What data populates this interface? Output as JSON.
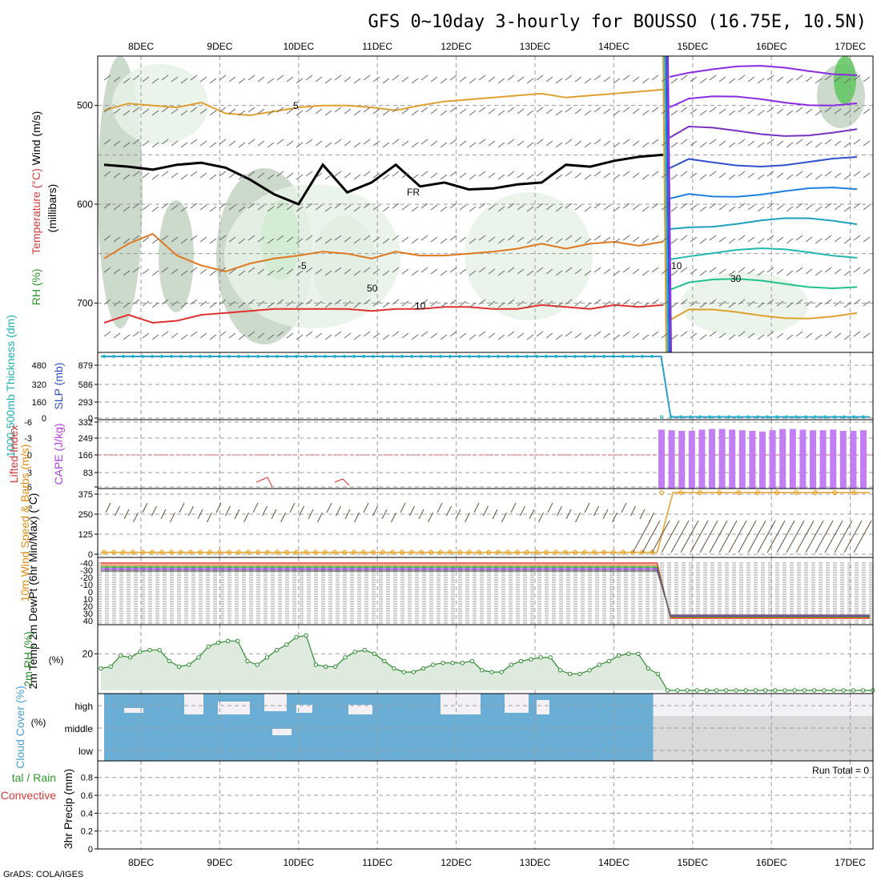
{
  "title": "GFS 0~10day 3-hourly for BOUSSO (16.75E, 10.5N)",
  "credit": "GrADS: COLA/IGES",
  "colors": {
    "rh_light": "#e6f2e6",
    "rh_mid": "#c3d3c3",
    "rh_dark": "#5ec75e",
    "cloud": "#6aaed6",
    "cloud_clear": "#f3f0f6",
    "cape": "#c27ef2",
    "thick": "#2a9fd0",
    "wind_speed": "#e8a020",
    "rh2m": "#2e8b2e",
    "barb": "#666666",
    "freeze": "#000000"
  },
  "chart_data": [
    {
      "id": "upper_air",
      "type": "contour",
      "x": [
        "8DEC",
        "9DEC",
        "10DEC",
        "11DEC",
        "12DEC",
        "13DEC",
        "14DEC",
        "15DEC",
        "16DEC",
        "17DEC"
      ],
      "ylabel_parts": [
        "RH (%)",
        "Temperature (°C)",
        "Wind (m/s)",
        "(millibars)"
      ],
      "y_ticks": [
        500,
        600,
        700
      ],
      "ylim": [
        450,
        750
      ],
      "temp_labels": [
        "5",
        "FR",
        "-5",
        "10",
        "10",
        "30",
        "50"
      ],
      "freezing_level_mb": [
        560,
        562,
        565,
        560,
        558,
        563,
        575,
        590,
        600,
        560,
        588,
        578,
        560,
        582,
        578,
        585,
        584,
        580,
        578,
        560,
        562,
        556,
        552,
        550
      ],
      "iso5_mb": [
        505,
        498,
        500,
        502,
        497,
        508,
        510,
        506,
        502,
        500,
        500,
        502,
        505,
        500,
        496,
        494,
        492,
        490,
        488,
        492,
        490,
        488,
        486,
        484
      ],
      "iso_minus5_mb": [
        655,
        640,
        630,
        652,
        662,
        668,
        660,
        655,
        652,
        648,
        650,
        655,
        648,
        652,
        652,
        650,
        648,
        645,
        640,
        645,
        640,
        638,
        642,
        638
      ],
      "iso10_mb": [
        720,
        712,
        720,
        718,
        712,
        710,
        708,
        706,
        706,
        706,
        706,
        708,
        706,
        706,
        704,
        704,
        706,
        706,
        702,
        704,
        706,
        702,
        704,
        702
      ],
      "rh_shaded_pct": [
        30,
        50,
        70
      ]
    },
    {
      "id": "thickness_slp",
      "type": "line",
      "ylabel": "1000-500mb Thickness (dm)",
      "ylabel2": "SLP (mb)",
      "y_ticks": [
        "480",
        "320",
        "160",
        "0"
      ],
      "y2_ticks": [
        "879",
        "586",
        "293",
        "0"
      ],
      "series": [
        {
          "name": "Thickness",
          "values_norm_before": 0.94,
          "values_norm_after": 0.04,
          "break_day": 14.6
        }
      ]
    },
    {
      "id": "stability",
      "type": "bar",
      "ylabel": "Lifted Index",
      "ylabel2": "CAPE (J/kg)",
      "y_ticks": [
        "-6",
        "-3",
        "0",
        "3",
        "6"
      ],
      "y2_ticks": [
        "332",
        "249",
        "166",
        "83"
      ],
      "cape_bars": [
        0.93,
        0.92,
        0.91,
        0.91,
        0.93,
        0.94,
        0.94,
        0.93,
        0.92,
        0.91,
        0.9,
        0.92,
        0.94,
        0.94,
        0.93,
        0.92,
        0.92,
        0.93,
        0.91,
        0.91,
        0.92
      ]
    },
    {
      "id": "surface_wind",
      "type": "line",
      "ylabel": "10m Wind Speed & Barbs (m/s)",
      "y_ticks": [
        "375",
        "250",
        "125",
        "0"
      ],
      "ylim": [
        0,
        400
      ],
      "speed_before": 12,
      "speed_after": 385
    },
    {
      "id": "temp_2m",
      "type": "line",
      "ylabel": "2m Temp 2m DewPt (6hr Min/Max) (°C)",
      "levels": [
        "-40",
        "-30",
        "-20",
        "-10",
        "0",
        "10",
        "20",
        "30",
        "40"
      ]
    },
    {
      "id": "rh_2m",
      "type": "area",
      "ylabel": "2m RH (%)",
      "y_ticks": [
        "20"
      ],
      "ylim": [
        0,
        35
      ],
      "values": [
        12,
        13,
        19,
        18,
        21,
        22,
        22,
        16,
        13,
        14,
        18,
        24,
        26,
        27,
        27,
        16,
        14,
        18,
        22,
        25,
        29,
        30,
        14,
        13,
        13,
        18,
        21,
        22,
        20,
        16,
        12,
        10,
        10,
        12,
        14,
        15,
        15,
        15,
        16,
        11,
        10,
        10,
        14,
        16,
        17,
        18,
        18,
        11,
        9,
        9,
        11,
        14,
        16,
        19,
        20,
        20,
        12,
        9,
        0,
        0,
        0,
        0,
        0,
        0,
        0,
        0,
        0,
        0,
        0,
        0,
        0,
        0,
        0,
        0,
        0,
        0,
        0,
        0,
        0,
        0
      ]
    },
    {
      "id": "cloud_cover",
      "type": "area",
      "ylabel": "Cloud Cover (%)",
      "levels": [
        "high",
        "middle",
        "low"
      ]
    },
    {
      "id": "precip",
      "type": "bar",
      "ylabel": "3hr Precip (mm)",
      "legend_left": "tal / Rain",
      "legend_left2": "Convective",
      "y_ticks": [
        "0.8",
        "0.6",
        "0.4",
        "0.2",
        "0"
      ],
      "ylim": [
        0,
        0.95
      ],
      "run_total": "Run Total = 0"
    }
  ]
}
